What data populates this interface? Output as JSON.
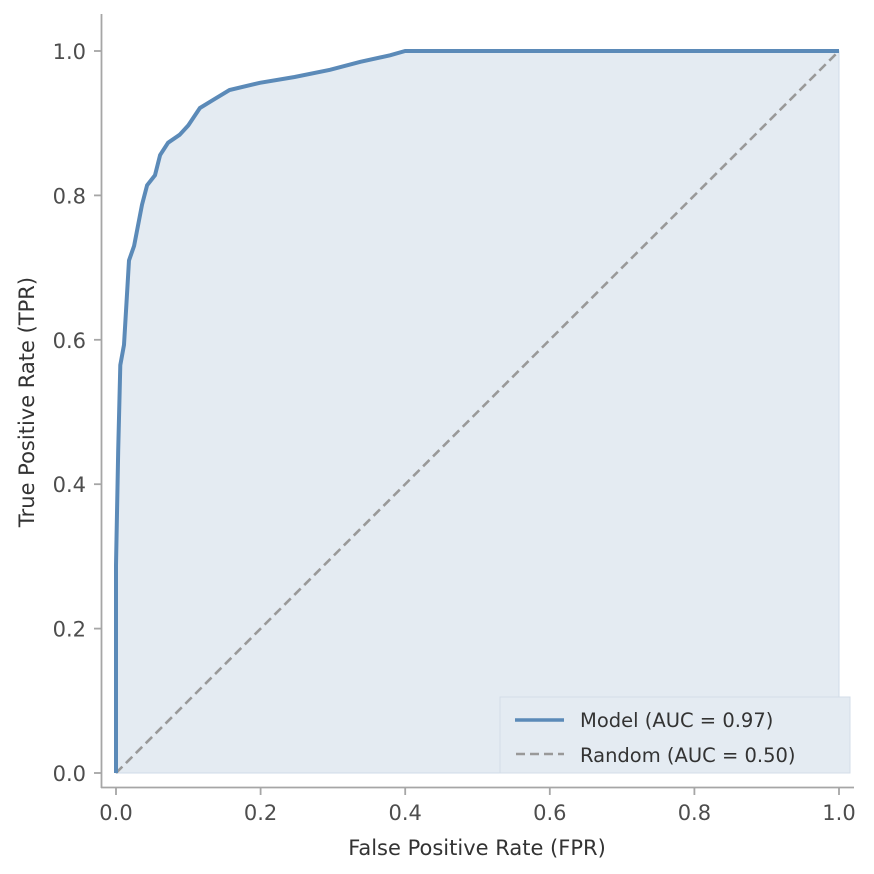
{
  "chart_data": {
    "type": "line",
    "title": "",
    "xlabel": "False Positive Rate (FPR)",
    "ylabel": "True Positive Rate (TPR)",
    "xlim": [
      0.0,
      1.0
    ],
    "ylim": [
      0.0,
      1.0
    ],
    "xticks": [
      "0.0",
      "0.2",
      "0.4",
      "0.6",
      "0.8",
      "1.0"
    ],
    "yticks": [
      "0.0",
      "0.2",
      "0.4",
      "0.6",
      "0.8",
      "1.0"
    ],
    "grid": false,
    "legend_position": "lower right",
    "series": [
      {
        "name": "Model (AUC = 0.97)",
        "style": "solid",
        "color": "#5b8ab8",
        "fill_under": true,
        "fill_color": "#e4ebf2",
        "x": [
          0.0,
          0.0,
          0.0,
          0.003,
          0.006,
          0.011,
          0.018,
          0.025,
          0.032,
          0.036,
          0.043,
          0.054,
          0.061,
          0.072,
          0.088,
          0.1,
          0.116,
          0.134,
          0.157,
          0.199,
          0.247,
          0.296,
          0.338,
          0.379,
          0.4,
          1.0
        ],
        "y": [
          0.0,
          0.1,
          0.288,
          0.447,
          0.565,
          0.593,
          0.71,
          0.73,
          0.766,
          0.787,
          0.814,
          0.828,
          0.856,
          0.873,
          0.884,
          0.897,
          0.921,
          0.932,
          0.946,
          0.956,
          0.964,
          0.974,
          0.985,
          0.994,
          1.0,
          1.0
        ]
      },
      {
        "name": "Random (AUC = 0.50)",
        "style": "dashed",
        "color": "#999999",
        "x": [
          0.0,
          1.0
        ],
        "y": [
          0.0,
          1.0
        ]
      }
    ]
  },
  "legend": {
    "items": [
      {
        "label": "Model (AUC = 0.97)"
      },
      {
        "label": "Random (AUC = 0.50)"
      }
    ]
  },
  "axes": {
    "xlabel": "False Positive Rate (FPR)",
    "ylabel": "True Positive Rate (TPR)",
    "xticks": [
      "0.0",
      "0.2",
      "0.4",
      "0.6",
      "0.8",
      "1.0"
    ],
    "yticks": [
      "0.0",
      "0.2",
      "0.4",
      "0.6",
      "0.8",
      "1.0"
    ]
  }
}
